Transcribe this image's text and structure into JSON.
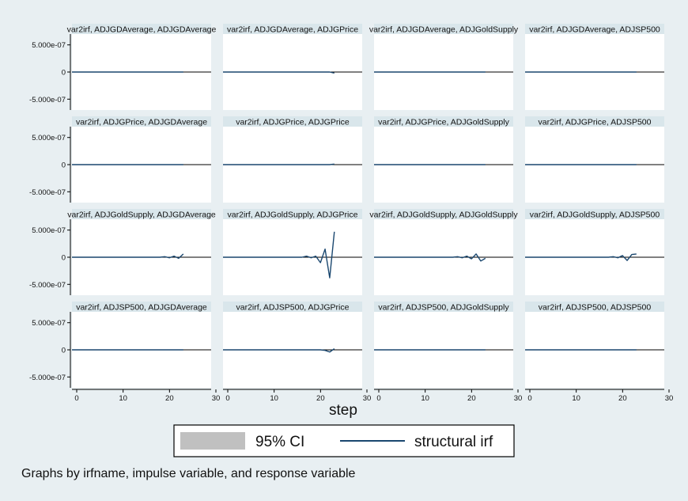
{
  "chart_data": {
    "type": "line",
    "grid": false,
    "xlabel": "step",
    "xlim": [
      0,
      30
    ],
    "ylim": [
      -7e-07,
      7e-07
    ],
    "x_ticks": [
      0,
      10,
      20,
      30
    ],
    "y_ticks": [
      5e-07,
      0,
      -5e-07
    ],
    "x_tick_labels": [
      "0",
      "10",
      "20",
      "30"
    ],
    "y_tick_labels": [
      "5.000e-07",
      "0",
      "-5.000e-07"
    ],
    "legend": {
      "position": "bottom",
      "entries": [
        {
          "label": "95% CI",
          "kind": "area",
          "color": "#c0c0c0"
        },
        {
          "label": "structural irf",
          "kind": "line",
          "color": "#1a476f"
        }
      ]
    },
    "note": "Graphs by irfname, impulse variable, and response variable",
    "steps": [
      0,
      1,
      2,
      3,
      4,
      5,
      6,
      7,
      8,
      9,
      10,
      11,
      12,
      13,
      14,
      15,
      16,
      17,
      18,
      19,
      20,
      21,
      22,
      23,
      24
    ],
    "panels": [
      {
        "title": "var2irf, ADJGDAverage, ADJGDAverage",
        "series": [
          {
            "name": "structural irf",
            "values": [
              0,
              0,
              0,
              0,
              0,
              0,
              0,
              0,
              0,
              0,
              0,
              0,
              0,
              0,
              0,
              0,
              0,
              0,
              0,
              0,
              0,
              0,
              0,
              0,
              0
            ]
          }
        ]
      },
      {
        "title": "var2irf, ADJGDAverage, ADJGPrice",
        "series": [
          {
            "name": "structural irf",
            "values": [
              0,
              0,
              0,
              0,
              0,
              0,
              0,
              0,
              0,
              0,
              0,
              0,
              0,
              0,
              0,
              0,
              0,
              0,
              0,
              0,
              0,
              0,
              0,
              0,
              -2e-08
            ]
          }
        ]
      },
      {
        "title": "var2irf, ADJGDAverage, ADJGoldSupply",
        "series": [
          {
            "name": "structural irf",
            "values": [
              0,
              0,
              0,
              0,
              0,
              0,
              0,
              0,
              0,
              0,
              0,
              0,
              0,
              0,
              0,
              0,
              0,
              0,
              0,
              0,
              0,
              0,
              0,
              0,
              0
            ]
          }
        ]
      },
      {
        "title": "var2irf, ADJGDAverage, ADJSP500",
        "series": [
          {
            "name": "structural irf",
            "values": [
              0,
              0,
              0,
              0,
              0,
              0,
              0,
              0,
              0,
              0,
              0,
              0,
              0,
              0,
              0,
              0,
              0,
              0,
              0,
              0,
              0,
              0,
              0,
              0,
              0
            ]
          }
        ]
      },
      {
        "title": "var2irf, ADJGPrice, ADJGDAverage",
        "series": [
          {
            "name": "structural irf",
            "values": [
              0,
              0,
              0,
              0,
              0,
              0,
              0,
              0,
              0,
              0,
              0,
              0,
              0,
              0,
              0,
              0,
              0,
              0,
              0,
              0,
              0,
              0,
              0,
              0,
              0
            ]
          }
        ]
      },
      {
        "title": "var2irf, ADJGPrice, ADJGPrice",
        "series": [
          {
            "name": "structural irf",
            "values": [
              0,
              0,
              0,
              0,
              0,
              0,
              0,
              0,
              0,
              0,
              0,
              0,
              0,
              0,
              0,
              0,
              0,
              0,
              0,
              0,
              0,
              0,
              0,
              0,
              1e-08
            ]
          }
        ]
      },
      {
        "title": "var2irf, ADJGPrice, ADJGoldSupply",
        "series": [
          {
            "name": "structural irf",
            "values": [
              0,
              0,
              0,
              0,
              0,
              0,
              0,
              0,
              0,
              0,
              0,
              0,
              0,
              0,
              0,
              0,
              0,
              0,
              0,
              0,
              0,
              0,
              0,
              0,
              0
            ]
          }
        ]
      },
      {
        "title": "var2irf, ADJGPrice, ADJSP500",
        "series": [
          {
            "name": "structural irf",
            "values": [
              0,
              0,
              0,
              0,
              0,
              0,
              0,
              0,
              0,
              0,
              0,
              0,
              0,
              0,
              0,
              0,
              0,
              0,
              0,
              0,
              0,
              0,
              0,
              0,
              0
            ]
          }
        ]
      },
      {
        "title": "var2irf, ADJGoldSupply, ADJGDAverage",
        "series": [
          {
            "name": "structural irf",
            "values": [
              0,
              0,
              0,
              0,
              0,
              0,
              0,
              0,
              0,
              0,
              0,
              0,
              0,
              0,
              0,
              0,
              0,
              0,
              0,
              0,
              1e-08,
              -1e-08,
              2e-08,
              -2e-08,
              6e-08
            ]
          }
        ]
      },
      {
        "title": "var2irf, ADJGoldSupply, ADJGPrice",
        "series": [
          {
            "name": "structural irf",
            "values": [
              0,
              0,
              0,
              0,
              0,
              0,
              0,
              0,
              0,
              0,
              0,
              0,
              0,
              0,
              0,
              0,
              0,
              0,
              2e-08,
              -1e-08,
              2e-08,
              -1e-07,
              1.5e-07,
              -3.8e-07,
              4.7e-07
            ]
          }
        ]
      },
      {
        "title": "var2irf, ADJGoldSupply, ADJGoldSupply",
        "series": [
          {
            "name": "structural irf",
            "values": [
              0,
              0,
              0,
              0,
              0,
              0,
              0,
              0,
              0,
              0,
              0,
              0,
              0,
              0,
              0,
              0,
              0,
              0,
              1e-08,
              -1e-08,
              2e-08,
              -3e-08,
              6e-08,
              -7e-08,
              -2e-08
            ]
          }
        ]
      },
      {
        "title": "var2irf, ADJGoldSupply, ADJSP500",
        "series": [
          {
            "name": "structural irf",
            "values": [
              0,
              0,
              0,
              0,
              0,
              0,
              0,
              0,
              0,
              0,
              0,
              0,
              0,
              0,
              0,
              0,
              0,
              0,
              0,
              1e-08,
              -1e-08,
              3e-08,
              -6e-08,
              5e-08,
              6e-08
            ]
          }
        ]
      },
      {
        "title": "var2irf, ADJSP500, ADJGDAverage",
        "series": [
          {
            "name": "structural irf",
            "values": [
              0,
              0,
              0,
              0,
              0,
              0,
              0,
              0,
              0,
              0,
              0,
              0,
              0,
              0,
              0,
              0,
              0,
              0,
              0,
              0,
              0,
              0,
              0,
              0,
              0
            ]
          }
        ]
      },
      {
        "title": "var2irf, ADJSP500, ADJGPrice",
        "series": [
          {
            "name": "structural irf",
            "values": [
              0,
              0,
              0,
              0,
              0,
              0,
              0,
              0,
              0,
              0,
              0,
              0,
              0,
              0,
              0,
              0,
              0,
              0,
              0,
              0,
              0,
              0,
              -1e-08,
              -4e-08,
              2e-08
            ]
          }
        ]
      },
      {
        "title": "var2irf, ADJSP500, ADJGoldSupply",
        "series": [
          {
            "name": "structural irf",
            "values": [
              0,
              0,
              0,
              0,
              0,
              0,
              0,
              0,
              0,
              0,
              0,
              0,
              0,
              0,
              0,
              0,
              0,
              0,
              0,
              0,
              0,
              0,
              0,
              0,
              0
            ]
          }
        ]
      },
      {
        "title": "var2irf, ADJSP500, ADJSP500",
        "series": [
          {
            "name": "structural irf",
            "values": [
              0,
              0,
              0,
              0,
              0,
              0,
              0,
              0,
              0,
              0,
              0,
              0,
              0,
              0,
              0,
              0,
              0,
              0,
              0,
              0,
              0,
              0,
              0,
              0,
              0
            ]
          }
        ]
      }
    ]
  }
}
